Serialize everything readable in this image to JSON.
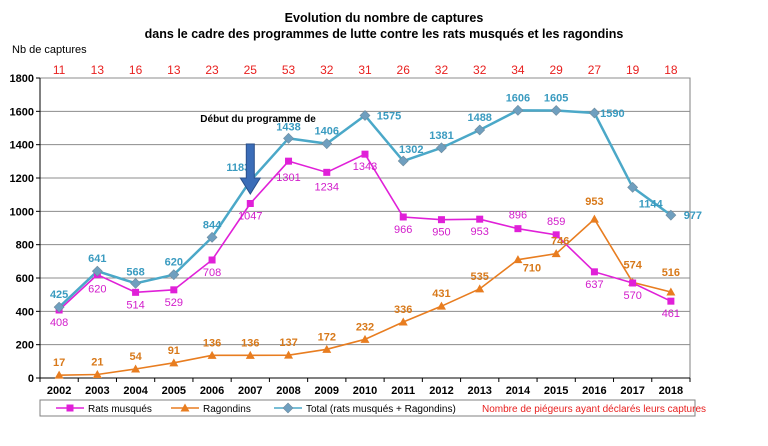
{
  "chart_data": {
    "type": "line",
    "title": "Evolution du nombre de captures",
    "subtitle": "dans le cadre des programmes de lutte contre les rats musqués et les ragondins",
    "ylabel": "Nb de captures",
    "xlabel": "",
    "ylim": [
      0,
      1800
    ],
    "yticks": [
      0,
      200,
      400,
      600,
      800,
      1000,
      1200,
      1400,
      1600,
      1800
    ],
    "grid": true,
    "legend_position": "bottom",
    "categories": [
      "2002",
      "2003",
      "2004",
      "2005",
      "2006",
      "2007",
      "2008",
      "2009",
      "2010",
      "2011",
      "2012",
      "2013",
      "2014",
      "2015",
      "2016",
      "2017",
      "2018"
    ],
    "series": [
      {
        "name": "Rats musqués",
        "color": "#e020d8",
        "marker": "square",
        "values": [
          408,
          620,
          514,
          529,
          708,
          1047,
          1301,
          1234,
          1343,
          966,
          950,
          953,
          896,
          859,
          637,
          570,
          461
        ]
      },
      {
        "name": "Ragondins",
        "color": "#e87d20",
        "marker": "triangle",
        "values": [
          17,
          21,
          54,
          91,
          136,
          136,
          137,
          172,
          232,
          336,
          431,
          535,
          710,
          746,
          953,
          574,
          516
        ]
      },
      {
        "name": "Total (rats musqués + Ragondins)",
        "color": "#4ba8c8",
        "marker": "diamond",
        "values": [
          425,
          641,
          568,
          620,
          844,
          1183,
          1438,
          1406,
          1575,
          1302,
          1381,
          1488,
          1606,
          1605,
          1590,
          1144,
          977
        ]
      }
    ],
    "trappers": {
      "label": "Nombre de piégeurs ayant déclarés leurs captures",
      "color": "#e8201f",
      "values": [
        11,
        13,
        16,
        13,
        23,
        25,
        53,
        32,
        31,
        26,
        32,
        32,
        34,
        29,
        27,
        19,
        18
      ]
    },
    "annotation": {
      "text": "Début du programme de",
      "category": "2007",
      "arrow_color": "#3b6db8"
    }
  }
}
